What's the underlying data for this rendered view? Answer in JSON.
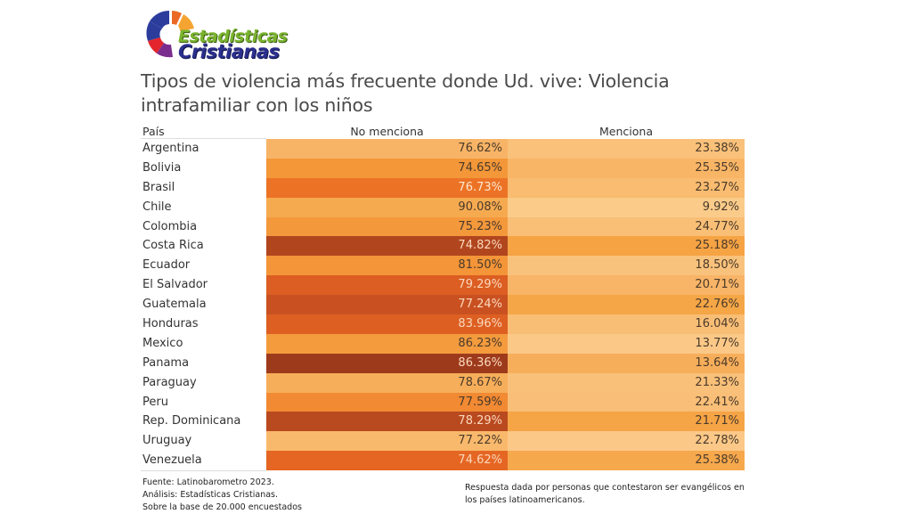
{
  "logo": {
    "line1": "Estadísticas",
    "line2": "Cristianas"
  },
  "chart_data": {
    "type": "table",
    "title": "Tipos de violencia más frecuente donde Ud. vive: Violencia intrafamiliar con los niños",
    "columns": [
      "País",
      "No menciona",
      "Menciona"
    ],
    "rows": [
      {
        "country": "Argentina",
        "no_menciona": "76.62%",
        "menciona": "23.38%",
        "nm_color": "#f8b466",
        "m_color": "#f9c17a",
        "nm_text": "#4a3a2a"
      },
      {
        "country": "Bolivia",
        "no_menciona": "74.65%",
        "menciona": "25.35%",
        "nm_color": "#f39739",
        "m_color": "#f8b566",
        "nm_text": "#4a3a2a"
      },
      {
        "country": "Brasil",
        "no_menciona": "76.73%",
        "menciona": "23.27%",
        "nm_color": "#ec7325",
        "m_color": "#f9bc70",
        "nm_text": "#fde6cf"
      },
      {
        "country": "Chile",
        "no_menciona": "90.08%",
        "menciona": "9.92%",
        "nm_color": "#f6aa50",
        "m_color": "#fbcb8a",
        "nm_text": "#4a3a2a"
      },
      {
        "country": "Colombia",
        "no_menciona": "75.23%",
        "menciona": "24.77%",
        "nm_color": "#f4983c",
        "m_color": "#f9bf76",
        "nm_text": "#4a3a2a"
      },
      {
        "country": "Costa Rica",
        "no_menciona": "74.82%",
        "menciona": "25.18%",
        "nm_color": "#b1461e",
        "m_color": "#f6a344",
        "nm_text": "#fbd9bd"
      },
      {
        "country": "Ecuador",
        "no_menciona": "81.50%",
        "menciona": "18.50%",
        "nm_color": "#f39538",
        "m_color": "#f9c27c",
        "nm_text": "#4a3a2a"
      },
      {
        "country": "El Salvador",
        "no_menciona": "79.29%",
        "menciona": "20.71%",
        "nm_color": "#dc5e22",
        "m_color": "#f8b467",
        "nm_text": "#fbd9bd"
      },
      {
        "country": "Guatemala",
        "no_menciona": "77.24%",
        "menciona": "22.76%",
        "nm_color": "#c95121",
        "m_color": "#f5a646",
        "nm_text": "#fbd9bd"
      },
      {
        "country": "Honduras",
        "no_menciona": "83.96%",
        "menciona": "16.04%",
        "nm_color": "#dd5f22",
        "m_color": "#f9be76",
        "nm_text": "#fbd9bd"
      },
      {
        "country": "Mexico",
        "no_menciona": "86.23%",
        "menciona": "13.77%",
        "nm_color": "#f49b3e",
        "m_color": "#fbc888",
        "nm_text": "#4a3a2a"
      },
      {
        "country": "Panama",
        "no_menciona": "86.36%",
        "menciona": "13.64%",
        "nm_color": "#9e3a1c",
        "m_color": "#f7ae5a",
        "nm_text": "#fbd9bd"
      },
      {
        "country": "Paraguay",
        "no_menciona": "78.67%",
        "menciona": "21.33%",
        "nm_color": "#f7ae5a",
        "m_color": "#f9c07a",
        "nm_text": "#4a3a2a"
      },
      {
        "country": "Peru",
        "no_menciona": "77.59%",
        "menciona": "22.41%",
        "nm_color": "#f18a33",
        "m_color": "#f9bf78",
        "nm_text": "#4a3a2a"
      },
      {
        "country": "Rep. Dominicana",
        "no_menciona": "78.29%",
        "menciona": "21.71%",
        "nm_color": "#b9491f",
        "m_color": "#f5a446",
        "nm_text": "#fbd9bd"
      },
      {
        "country": "Uruguay",
        "no_menciona": "77.22%",
        "menciona": "22.78%",
        "nm_color": "#f9b96c",
        "m_color": "#fbc888",
        "nm_text": "#4a3a2a"
      },
      {
        "country": "Venezuela",
        "no_menciona": "74.62%",
        "menciona": "25.38%",
        "nm_color": "#e56623",
        "m_color": "#f6a84c",
        "nm_text": "#fbd9bd"
      }
    ]
  },
  "footer": {
    "source": "Fuente: Latinobarometro 2023.",
    "analysis": "Análisis: Estadísticas Cristianas.",
    "base": "Sobre la base de 20.000 encuestados",
    "note": "Respuesta dada por personas que contestaron ser evangélicos en los países latinoamericanos."
  }
}
